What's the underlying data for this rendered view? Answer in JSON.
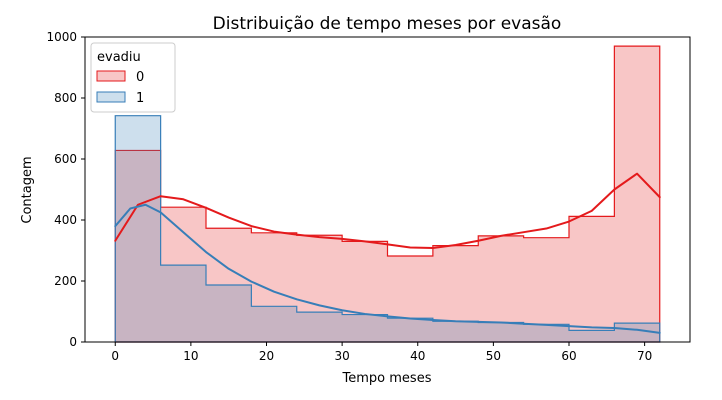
{
  "chart_data": {
    "type": "histogram",
    "title": "Distribuição de tempo meses por evasão",
    "xlabel": "Tempo meses",
    "ylabel": "Contagem",
    "xlim": [
      -4,
      76
    ],
    "ylim": [
      0,
      1000
    ],
    "xticks": [
      0,
      10,
      20,
      30,
      40,
      50,
      60,
      70
    ],
    "yticks": [
      0,
      200,
      400,
      600,
      800,
      1000
    ],
    "bin_edges": [
      0,
      6,
      12,
      18,
      24,
      30,
      36,
      42,
      48,
      54,
      60,
      66,
      72
    ],
    "grid": false,
    "legend": {
      "title": "evadiu",
      "position": "top-left"
    },
    "series": [
      {
        "name": "0",
        "color": "#e41a1c",
        "fill": "#f4b6b8",
        "counts": [
          628,
          442,
          373,
          358,
          350,
          330,
          282,
          316,
          348,
          342,
          412,
          970
        ],
        "kde": [
          [
            0,
            332
          ],
          [
            3,
            450
          ],
          [
            6,
            478
          ],
          [
            9,
            468
          ],
          [
            12,
            440
          ],
          [
            15,
            408
          ],
          [
            18,
            380
          ],
          [
            21,
            362
          ],
          [
            24,
            352
          ],
          [
            27,
            344
          ],
          [
            30,
            338
          ],
          [
            33,
            330
          ],
          [
            36,
            320
          ],
          [
            39,
            310
          ],
          [
            42,
            308
          ],
          [
            45,
            318
          ],
          [
            48,
            332
          ],
          [
            51,
            348
          ],
          [
            54,
            360
          ],
          [
            57,
            372
          ],
          [
            60,
            395
          ],
          [
            63,
            430
          ],
          [
            66,
            500
          ],
          [
            69,
            552
          ],
          [
            72,
            475
          ]
        ]
      },
      {
        "name": "1",
        "color": "#377eb8",
        "fill": "#bcd4e8",
        "counts": [
          742,
          252,
          187,
          117,
          98,
          90,
          78,
          68,
          64,
          58,
          38,
          62
        ],
        "kde": [
          [
            0,
            380
          ],
          [
            2,
            438
          ],
          [
            4,
            450
          ],
          [
            6,
            425
          ],
          [
            9,
            360
          ],
          [
            12,
            295
          ],
          [
            15,
            240
          ],
          [
            18,
            198
          ],
          [
            21,
            165
          ],
          [
            24,
            140
          ],
          [
            27,
            120
          ],
          [
            30,
            104
          ],
          [
            33,
            92
          ],
          [
            36,
            84
          ],
          [
            39,
            77
          ],
          [
            42,
            72
          ],
          [
            45,
            68
          ],
          [
            48,
            66
          ],
          [
            51,
            64
          ],
          [
            54,
            60
          ],
          [
            57,
            56
          ],
          [
            60,
            52
          ],
          [
            63,
            48
          ],
          [
            66,
            46
          ],
          [
            69,
            40
          ],
          [
            72,
            30
          ]
        ]
      }
    ]
  }
}
